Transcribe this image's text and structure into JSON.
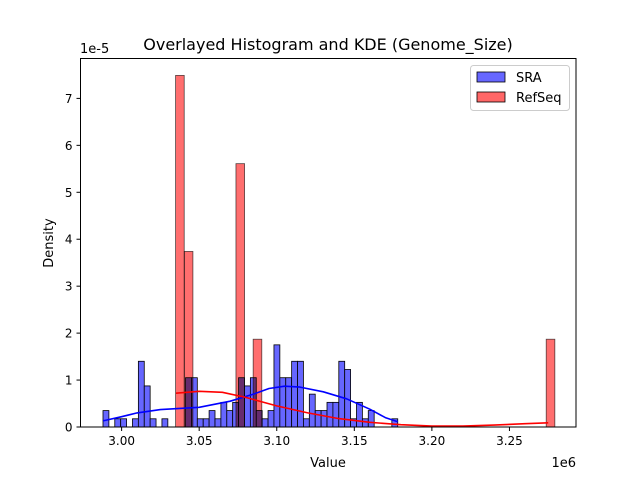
{
  "chart_data": {
    "type": "bar",
    "title": "Overlayed Histogram and KDE (Genome_Size)",
    "xlabel": "Value",
    "ylabel": "Density",
    "x_offset_label": "1e6",
    "y_offset_label": "1e-5",
    "xlim": [
      2.9735,
      3.2929
    ],
    "ylim": [
      0,
      7.85
    ],
    "x_unit_scale": "1e6",
    "y_unit_scale": "1e-5",
    "xticks": [
      3.0,
      3.05,
      3.1,
      3.15,
      3.2,
      3.25
    ],
    "xtick_labels": [
      "3.00",
      "3.05",
      "3.10",
      "3.15",
      "3.20",
      "3.25"
    ],
    "yticks": [
      0,
      1,
      2,
      3,
      4,
      5,
      6,
      7
    ],
    "ytick_labels": [
      "0",
      "1",
      "2",
      "3",
      "4",
      "5",
      "6",
      "7"
    ],
    "grid": false,
    "legend_position": "top-right",
    "series": [
      {
        "name": "SRA",
        "color": "#0000ff",
        "fill": "#6666ff",
        "bin_start": 2.988,
        "bin_width": 0.0038,
        "values": [
          0.35,
          0,
          0.175,
          0.175,
          0,
          0.175,
          1.4,
          0.875,
          0.175,
          0,
          0.175,
          0,
          0,
          0,
          1.05,
          1.05,
          0.175,
          0.175,
          0.35,
          0.175,
          0.525,
          0.35,
          0.525,
          1.05,
          0.875,
          1.05,
          0.35,
          0.175,
          0.35,
          1.75,
          1.05,
          1.05,
          1.4,
          1.4,
          0.175,
          0.7,
          0.35,
          0.35,
          0.525,
          0.525,
          1.4,
          1.225,
          0.175,
          0.525,
          0.175,
          0.35,
          0,
          0,
          0,
          0.175
        ],
        "kde": {
          "x": [
            2.988,
            3.0,
            3.01,
            3.025,
            3.05,
            3.07,
            3.085,
            3.095,
            3.105,
            3.115,
            3.13,
            3.145,
            3.16,
            3.17,
            3.178
          ],
          "y": [
            0.13,
            0.22,
            0.3,
            0.37,
            0.42,
            0.55,
            0.7,
            0.82,
            0.87,
            0.85,
            0.75,
            0.6,
            0.38,
            0.2,
            0.11
          ]
        }
      },
      {
        "name": "RefSeq",
        "color": "#ff0000",
        "fill": "#ff6666",
        "bin_width": 0.00556,
        "bin_starts": [
          3.0348,
          3.0404,
          3.0737,
          3.0848,
          3.2737
        ],
        "values": [
          7.49,
          3.74,
          5.61,
          1.87,
          1.87
        ],
        "kde": {
          "x": [
            3.035,
            3.05,
            3.065,
            3.08,
            3.1,
            3.12,
            3.14,
            3.16,
            3.18,
            3.2,
            3.22,
            3.24,
            3.26,
            3.275
          ],
          "y": [
            0.72,
            0.76,
            0.74,
            0.63,
            0.45,
            0.3,
            0.18,
            0.1,
            0.05,
            0.02,
            0.02,
            0.04,
            0.07,
            0.09
          ]
        }
      }
    ]
  }
}
